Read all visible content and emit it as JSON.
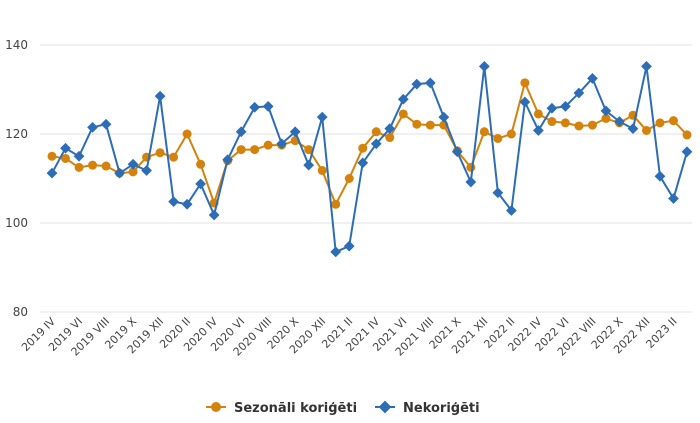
{
  "chart_data": {
    "type": "line",
    "title": "",
    "xlabel": "",
    "ylabel": "",
    "ylim": [
      80,
      140
    ],
    "yticks": [
      80,
      100,
      120,
      140
    ],
    "grid": true,
    "legend": "bottom-center",
    "x": [
      "2019 IV",
      "2019 V",
      "2019 VI",
      "2019 VII",
      "2019 VIII",
      "2019 IX",
      "2019 X",
      "2019 XI",
      "2019 XII",
      "2020 I",
      "2020 II",
      "2020 III",
      "2020 IV",
      "2020 V",
      "2020 VI",
      "2020 VII",
      "2020 VIII",
      "2020 IX",
      "2020 X",
      "2020 XI",
      "2020 XII",
      "2021 I",
      "2021 II",
      "2021 III",
      "2021 IV",
      "2021 V",
      "2021 VI",
      "2021 VII",
      "2021 VIII",
      "2021 IX",
      "2021 X",
      "2021 XI",
      "2021 XII",
      "2022 I",
      "2022 II",
      "2022 III",
      "2022 IV",
      "2022 V",
      "2022 VI",
      "2022 VII",
      "2022 VIII",
      "2022 IX",
      "2022 X",
      "2022 XI",
      "2022 XII",
      "2023 I",
      "2023 II",
      "2023 III"
    ],
    "x_tick_labels": [
      "2019 IV",
      "2019 VI",
      "2019 VIII",
      "2019 X",
      "2019 XII",
      "2020 II",
      "2020 IV",
      "2020 VI",
      "2020 VIII",
      "2020 X",
      "2020 XII",
      "2021 II",
      "2021 IV",
      "2021 VI",
      "2021 VIII",
      "2021 X",
      "2021 XII",
      "2022 II",
      "2022 IV",
      "2022 VI",
      "2022 VIII",
      "2022 X",
      "2022 XII",
      "2023 II"
    ],
    "series": [
      {
        "name": "Sezonāli koriģēti",
        "color": "#d4820c",
        "values": [
          115,
          114.5,
          112.5,
          113,
          112.8,
          111.2,
          111.5,
          114.8,
          115.8,
          114.8,
          120,
          113.2,
          104.5,
          114,
          116.5,
          116.5,
          117.5,
          117.5,
          118.5,
          116.5,
          111.8,
          104.2,
          110,
          116.8,
          120.5,
          119.2,
          124.5,
          122.2,
          122,
          122,
          116.2,
          112.5,
          120.5,
          119,
          120,
          131.5,
          124.5,
          122.8,
          122.5,
          121.8,
          122,
          123.5,
          122.5,
          124.2,
          120.8,
          122.5,
          123,
          119.8
        ]
      },
      {
        "name": "Nekoriģēti",
        "color": "#2c6db5",
        "values": [
          111.2,
          116.8,
          115,
          121.5,
          122.2,
          111.2,
          113.2,
          111.8,
          128.5,
          104.8,
          104.2,
          108.8,
          101.8,
          114.2,
          120.5,
          126,
          126.2,
          117.8,
          120.5,
          113,
          123.8,
          93.5,
          94.8,
          113.5,
          117.8,
          121.2,
          127.8,
          131.2,
          131.5,
          123.8,
          116,
          109.2,
          135.2,
          106.8,
          102.8,
          127.2,
          120.8,
          125.8,
          126.2,
          129.2,
          132.5,
          125.2,
          122.8,
          121.2,
          135.2,
          110.5,
          105.5,
          116
        ]
      }
    ]
  }
}
